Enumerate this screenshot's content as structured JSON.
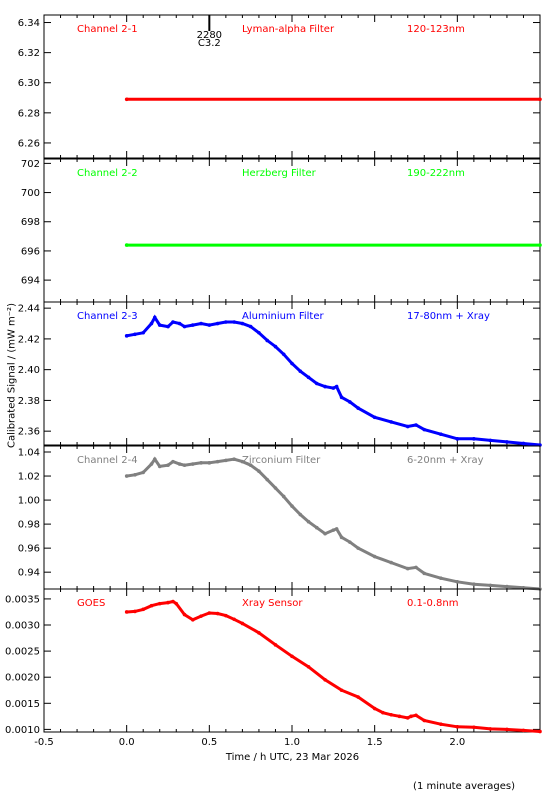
{
  "chart_data": {
    "type": "line",
    "xlabel": "Time / h UTC, 23 Mar 2026",
    "ylabel": "Calibrated Signal / (mW m⁻²)",
    "xlim": [
      -0.5,
      2.5
    ],
    "x_ticks": [
      "-0.5",
      "0.0",
      "0.5",
      "1.0",
      "1.5",
      "2.0"
    ],
    "footnote": "(1 minute averages)",
    "marker": {
      "x": 0.5,
      "label_top": "2280",
      "label_bottom": "C3.2"
    },
    "panels": [
      {
        "channel": "Channel 2-1",
        "filter": "Lyman-alpha Filter",
        "range": "120-123nm",
        "color": "#ff0000",
        "ylim": [
          6.25,
          6.345
        ],
        "y_ticks": [
          "6.34",
          "6.32",
          "6.30",
          "6.28",
          "6.26"
        ],
        "x": [
          0.0,
          2.5
        ],
        "y": [
          6.289,
          6.289
        ]
      },
      {
        "channel": "Channel 2-2",
        "filter": "Herzberg Filter",
        "range": "190-222nm",
        "color": "#00ff00",
        "ylim": [
          692.5,
          702.3
        ],
        "y_ticks": [
          "702",
          "700",
          "698",
          "696",
          "694"
        ],
        "x": [
          0.0,
          2.5
        ],
        "y": [
          696.4,
          696.4
        ]
      },
      {
        "channel": "Channel 2-3",
        "filter": "Aluminium Filter",
        "range": "17-80nm + Xray",
        "color": "#0000ff",
        "ylim": [
          2.351,
          2.444
        ],
        "y_ticks": [
          "2.44",
          "2.42",
          "2.40",
          "2.38",
          "2.36"
        ],
        "x": [
          0.0,
          0.05,
          0.1,
          0.15,
          0.17,
          0.2,
          0.25,
          0.28,
          0.32,
          0.35,
          0.4,
          0.45,
          0.5,
          0.55,
          0.6,
          0.65,
          0.7,
          0.75,
          0.8,
          0.85,
          0.9,
          0.95,
          1.0,
          1.05,
          1.1,
          1.15,
          1.2,
          1.25,
          1.27,
          1.3,
          1.35,
          1.4,
          1.5,
          1.6,
          1.7,
          1.75,
          1.8,
          1.9,
          2.0,
          2.1,
          2.2,
          2.3,
          2.4,
          2.5
        ],
        "y": [
          2.422,
          2.423,
          2.424,
          2.43,
          2.434,
          2.429,
          2.428,
          2.431,
          2.43,
          2.428,
          2.429,
          2.43,
          2.429,
          2.43,
          2.431,
          2.431,
          2.43,
          2.428,
          2.424,
          2.419,
          2.415,
          2.41,
          2.404,
          2.399,
          2.395,
          2.391,
          2.389,
          2.388,
          2.389,
          2.382,
          2.379,
          2.375,
          2.369,
          2.366,
          2.363,
          2.364,
          2.361,
          2.358,
          2.355,
          2.355,
          2.354,
          2.353,
          2.352,
          2.351
        ]
      },
      {
        "channel": "Channel 2-4",
        "filter": "Zirconium Filter",
        "range": "6-20nm + Xray",
        "color": "#808080",
        "ylim": [
          0.926,
          1.045
        ],
        "y_ticks": [
          "1.04",
          "1.02",
          "1.00",
          "0.98",
          "0.96",
          "0.94"
        ],
        "x": [
          0.0,
          0.05,
          0.1,
          0.15,
          0.17,
          0.2,
          0.25,
          0.28,
          0.32,
          0.35,
          0.4,
          0.45,
          0.5,
          0.55,
          0.6,
          0.65,
          0.7,
          0.75,
          0.8,
          0.85,
          0.9,
          0.95,
          1.0,
          1.05,
          1.1,
          1.15,
          1.2,
          1.25,
          1.27,
          1.3,
          1.35,
          1.4,
          1.5,
          1.6,
          1.7,
          1.75,
          1.8,
          1.9,
          2.0,
          2.1,
          2.2,
          2.3,
          2.4,
          2.5
        ],
        "y": [
          1.02,
          1.021,
          1.023,
          1.03,
          1.034,
          1.028,
          1.029,
          1.032,
          1.03,
          1.029,
          1.03,
          1.031,
          1.031,
          1.032,
          1.033,
          1.034,
          1.032,
          1.029,
          1.024,
          1.017,
          1.01,
          1.003,
          0.995,
          0.988,
          0.982,
          0.977,
          0.972,
          0.975,
          0.976,
          0.969,
          0.965,
          0.96,
          0.953,
          0.948,
          0.943,
          0.944,
          0.939,
          0.935,
          0.932,
          0.93,
          0.929,
          0.928,
          0.927,
          0.926
        ]
      },
      {
        "channel": "GOES",
        "filter": "Xray Sensor",
        "range": "0.1-0.8nm",
        "color": "#ff0000",
        "ylim": [
          0.00095,
          0.00369
        ],
        "y_ticks": [
          "0.0035",
          "0.0030",
          "0.0025",
          "0.0020",
          "0.0015",
          "0.0010"
        ],
        "x": [
          0.0,
          0.05,
          0.1,
          0.15,
          0.2,
          0.25,
          0.28,
          0.3,
          0.35,
          0.4,
          0.45,
          0.5,
          0.55,
          0.6,
          0.65,
          0.7,
          0.8,
          0.9,
          1.0,
          1.1,
          1.2,
          1.3,
          1.4,
          1.5,
          1.55,
          1.6,
          1.65,
          1.7,
          1.72,
          1.75,
          1.8,
          1.9,
          2.0,
          2.1,
          2.2,
          2.3,
          2.4,
          2.5
        ],
        "y": [
          0.00325,
          0.00326,
          0.0033,
          0.00337,
          0.00341,
          0.00343,
          0.00345,
          0.00341,
          0.0032,
          0.0031,
          0.00317,
          0.00323,
          0.00322,
          0.00318,
          0.00311,
          0.00303,
          0.00285,
          0.00262,
          0.0024,
          0.0022,
          0.00195,
          0.00175,
          0.00162,
          0.0014,
          0.00132,
          0.00128,
          0.00125,
          0.00122,
          0.00125,
          0.00127,
          0.00117,
          0.0011,
          0.00105,
          0.00104,
          0.00101,
          0.001,
          0.00098,
          0.00096
        ]
      }
    ]
  }
}
